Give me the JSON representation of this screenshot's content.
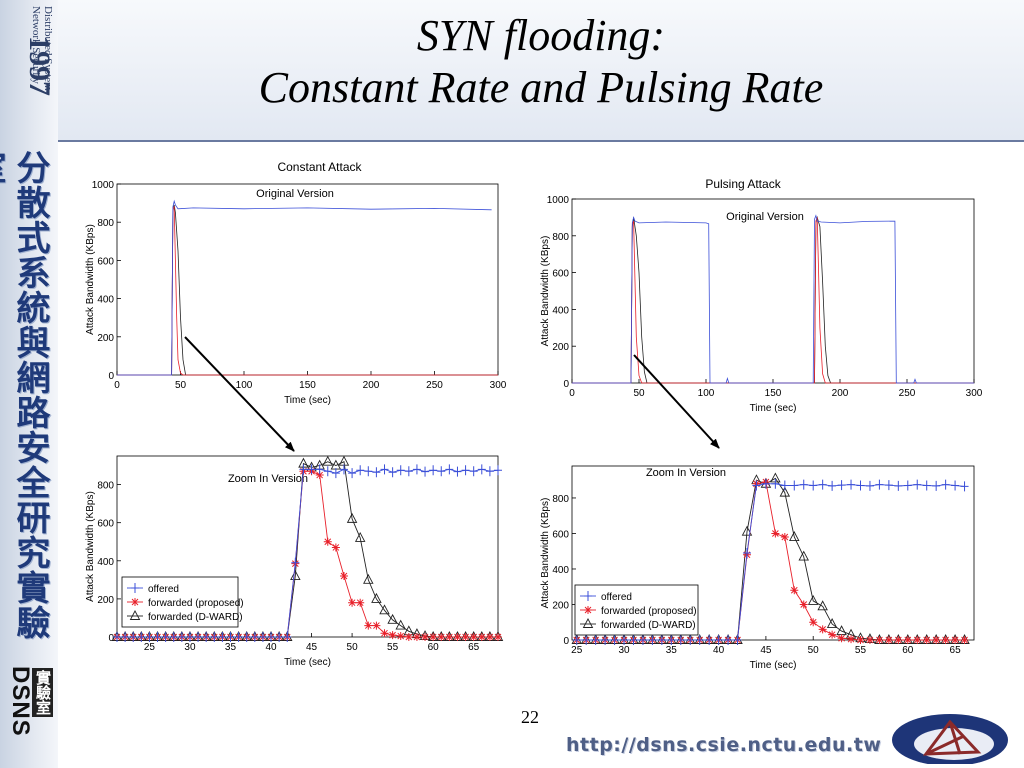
{
  "slide": {
    "title_line1": "SYN flooding:",
    "title_line2": "Constant Rate and Pulsing Rate",
    "page_number": "22",
    "url": "http://dsns.csie.nctu.edu.tw"
  },
  "branding": {
    "year": "1997",
    "lab_name": "Distributed System\nNetwork Security",
    "lab_chinese": "分散式系統與網路安全研究實驗室",
    "dsns": "DSNS",
    "lab_word": "實驗室"
  },
  "colors": {
    "offered": "#3b4fd8",
    "forwarded_proposed": "#e8202a",
    "forwarded_dward": "#222222",
    "background_strip": "#c9d3e2"
  },
  "chart_data": [
    {
      "id": "constant-original",
      "type": "line",
      "title": "Constant Attack",
      "annotation": "Original Version",
      "xlabel": "Time (sec)",
      "ylabel": "Attack Bandwidth (KBps)",
      "xlim": [
        0,
        300
      ],
      "ylim": [
        0,
        1000
      ],
      "xticks": [
        0,
        50,
        100,
        150,
        200,
        250,
        300
      ],
      "yticks": [
        0,
        200,
        400,
        600,
        800,
        1000
      ],
      "xtick_labels": [
        "0",
        "50",
        "100",
        "150",
        "200",
        "250",
        "300"
      ],
      "ytick_labels": [
        "0",
        "200",
        "400",
        "600",
        "800",
        "1000"
      ],
      "series": [
        {
          "key": "offered",
          "x": [
            0,
            43,
            44,
            45,
            46,
            48,
            60,
            100,
            150,
            200,
            250,
            295
          ],
          "y": [
            0,
            0,
            880,
            910,
            890,
            870,
            875,
            870,
            875,
            868,
            872,
            865
          ]
        },
        {
          "key": "forwarded_proposed",
          "x": [
            0,
            43,
            44,
            45,
            46,
            47,
            48,
            50,
            52,
            300
          ],
          "y": [
            0,
            0,
            870,
            880,
            600,
            300,
            80,
            10,
            0,
            0
          ]
        },
        {
          "key": "forwarded_dward",
          "x": [
            0,
            43,
            44,
            45,
            46,
            48,
            50,
            52,
            54,
            300
          ],
          "y": [
            0,
            0,
            860,
            890,
            850,
            650,
            300,
            80,
            0,
            0
          ]
        }
      ]
    },
    {
      "id": "constant-zoom",
      "type": "line",
      "annotation": "Zoom In Version",
      "xlabel": "Time (sec)",
      "ylabel": "Attack Bandwidth (KBps)",
      "xlim": [
        21,
        68
      ],
      "ylim": [
        0,
        950
      ],
      "xticks": [
        25,
        30,
        35,
        40,
        45,
        50,
        55,
        60,
        65
      ],
      "yticks": [
        0,
        200,
        400,
        600,
        800
      ],
      "xtick_labels": [
        "25",
        "30",
        "35",
        "40",
        "45",
        "50",
        "55",
        "60",
        "65"
      ],
      "ytick_labels": [
        "0",
        "200",
        "400",
        "600",
        "800"
      ],
      "legend": [
        "offered",
        "forwarded (proposed)",
        "forwarded (D-WARD)"
      ],
      "legend_position": "bottom-left",
      "series": [
        {
          "key": "offered",
          "x": [
            21,
            22,
            23,
            24,
            25,
            26,
            27,
            28,
            29,
            30,
            31,
            32,
            33,
            34,
            35,
            36,
            37,
            38,
            39,
            40,
            41,
            42,
            43,
            44,
            45,
            46,
            47,
            48,
            49,
            50,
            51,
            52,
            53,
            54,
            55,
            56,
            57,
            58,
            59,
            60,
            61,
            62,
            63,
            64,
            65,
            66,
            67,
            68
          ],
          "y": [
            0,
            0,
            0,
            0,
            0,
            0,
            0,
            0,
            0,
            0,
            0,
            0,
            0,
            0,
            0,
            0,
            0,
            0,
            0,
            0,
            0,
            0,
            390,
            880,
            880,
            880,
            870,
            860,
            880,
            860,
            875,
            870,
            865,
            880,
            865,
            875,
            870,
            880,
            868,
            875,
            870,
            880,
            868,
            875,
            870,
            880,
            870,
            875
          ]
        },
        {
          "key": "forwarded_proposed",
          "x": [
            21,
            22,
            23,
            24,
            25,
            26,
            27,
            28,
            29,
            30,
            31,
            32,
            33,
            34,
            35,
            36,
            37,
            38,
            39,
            40,
            41,
            42,
            43,
            44,
            45,
            46,
            47,
            48,
            49,
            50,
            51,
            52,
            53,
            54,
            55,
            56,
            57,
            58,
            59,
            60,
            61,
            62,
            63,
            64,
            65,
            66,
            67,
            68
          ],
          "y": [
            0,
            0,
            0,
            0,
            0,
            0,
            0,
            0,
            0,
            0,
            0,
            0,
            0,
            0,
            0,
            0,
            0,
            0,
            0,
            0,
            0,
            0,
            385,
            870,
            870,
            850,
            500,
            470,
            320,
            180,
            180,
            60,
            60,
            20,
            10,
            5,
            0,
            0,
            0,
            0,
            0,
            0,
            0,
            0,
            0,
            0,
            0,
            0
          ]
        },
        {
          "key": "forwarded_dward",
          "x": [
            21,
            22,
            23,
            24,
            25,
            26,
            27,
            28,
            29,
            30,
            31,
            32,
            33,
            34,
            35,
            36,
            37,
            38,
            39,
            40,
            41,
            42,
            43,
            44,
            45,
            46,
            47,
            48,
            49,
            50,
            51,
            52,
            53,
            54,
            55,
            56,
            57,
            58,
            59,
            60,
            61,
            62,
            63,
            64,
            65,
            66,
            67,
            68
          ],
          "y": [
            0,
            0,
            0,
            0,
            0,
            0,
            0,
            0,
            0,
            0,
            0,
            0,
            0,
            0,
            0,
            0,
            0,
            0,
            0,
            0,
            0,
            0,
            320,
            910,
            890,
            900,
            920,
            900,
            920,
            620,
            520,
            300,
            200,
            140,
            90,
            60,
            30,
            15,
            5,
            0,
            0,
            0,
            0,
            0,
            0,
            0,
            0,
            0
          ]
        }
      ]
    },
    {
      "id": "pulsing-original",
      "type": "line",
      "title": "Pulsing Attack",
      "annotation": "Original Version",
      "xlabel": "Time (sec)",
      "ylabel": "Attack Bandwidth (KBps)",
      "xlim": [
        0,
        300
      ],
      "ylim": [
        0,
        1000
      ],
      "xticks": [
        0,
        50,
        100,
        150,
        200,
        250,
        300
      ],
      "yticks": [
        0,
        200,
        400,
        600,
        800,
        1000
      ],
      "xtick_labels": [
        "0",
        "50",
        "100",
        "150",
        "200",
        "250",
        "300"
      ],
      "ytick_labels": [
        "0",
        "200",
        "400",
        "600",
        "800",
        "1000"
      ],
      "series": [
        {
          "key": "offered",
          "x": [
            0,
            44,
            45,
            46,
            47,
            50,
            70,
            100,
            102,
            103,
            115,
            116,
            117,
            118,
            180,
            181,
            182,
            183,
            186,
            200,
            220,
            241,
            242,
            243,
            255,
            256,
            257,
            258,
            300
          ],
          "y": [
            0,
            0,
            870,
            900,
            880,
            870,
            875,
            870,
            865,
            0,
            0,
            25,
            0,
            0,
            0,
            890,
            910,
            880,
            875,
            870,
            878,
            880,
            0,
            0,
            0,
            20,
            0,
            0,
            0
          ]
        },
        {
          "key": "forwarded_proposed",
          "x": [
            0,
            44,
            45,
            46,
            47,
            48,
            50,
            52,
            181,
            182,
            183,
            184,
            185,
            187,
            189,
            300
          ],
          "y": [
            0,
            0,
            860,
            880,
            550,
            250,
            40,
            0,
            0,
            880,
            900,
            600,
            300,
            50,
            0,
            0
          ]
        },
        {
          "key": "forwarded_dward",
          "x": [
            0,
            44,
            45,
            46,
            48,
            50,
            52,
            54,
            56,
            181,
            182,
            183,
            185,
            187,
            189,
            191,
            193,
            300
          ],
          "y": [
            0,
            0,
            850,
            900,
            800,
            600,
            250,
            60,
            0,
            0,
            870,
            900,
            850,
            550,
            200,
            40,
            0,
            0
          ]
        }
      ]
    },
    {
      "id": "pulsing-zoom",
      "type": "line",
      "annotation": "Zoom In Version",
      "xlabel": "Time (sec)",
      "ylabel": "Attack Bandwidth (KBps)",
      "xlim": [
        24.5,
        67
      ],
      "ylim": [
        0,
        980
      ],
      "xticks": [
        25,
        30,
        35,
        40,
        45,
        50,
        55,
        60,
        65
      ],
      "yticks": [
        0,
        200,
        400,
        600,
        800
      ],
      "xtick_labels": [
        "25",
        "30",
        "35",
        "40",
        "45",
        "50",
        "55",
        "60",
        "65"
      ],
      "ytick_labels": [
        "0",
        "200",
        "400",
        "600",
        "800"
      ],
      "legend": [
        "offered",
        "forwarded (proposed)",
        "forwarded (D-WARD)"
      ],
      "legend_position": "bottom-left",
      "series": [
        {
          "key": "offered",
          "x": [
            25,
            26,
            27,
            28,
            29,
            30,
            31,
            32,
            33,
            34,
            35,
            36,
            37,
            38,
            39,
            40,
            41,
            42,
            43,
            44,
            45,
            46,
            47,
            48,
            49,
            50,
            51,
            52,
            53,
            54,
            55,
            56,
            57,
            58,
            59,
            60,
            61,
            62,
            63,
            64,
            65,
            66
          ],
          "y": [
            0,
            0,
            0,
            0,
            0,
            0,
            0,
            0,
            0,
            0,
            0,
            0,
            0,
            0,
            0,
            0,
            0,
            0,
            490,
            870,
            880,
            880,
            870,
            870,
            875,
            870,
            875,
            868,
            872,
            875,
            870,
            868,
            875,
            872,
            868,
            870,
            875,
            870,
            868,
            875,
            870,
            865
          ]
        },
        {
          "key": "forwarded_proposed",
          "x": [
            25,
            26,
            27,
            28,
            29,
            30,
            31,
            32,
            33,
            34,
            35,
            36,
            37,
            38,
            39,
            40,
            41,
            42,
            43,
            44,
            45,
            46,
            47,
            48,
            49,
            50,
            51,
            52,
            53,
            54,
            55,
            56,
            57,
            58,
            59,
            60,
            61,
            62,
            63,
            64,
            65,
            66
          ],
          "y": [
            0,
            0,
            0,
            0,
            0,
            0,
            0,
            0,
            0,
            0,
            0,
            0,
            0,
            0,
            0,
            0,
            0,
            0,
            480,
            880,
            890,
            600,
            580,
            280,
            200,
            100,
            60,
            30,
            10,
            5,
            0,
            0,
            0,
            0,
            0,
            0,
            0,
            0,
            0,
            0,
            0,
            0
          ]
        },
        {
          "key": "forwarded_dward",
          "x": [
            25,
            26,
            27,
            28,
            29,
            30,
            31,
            32,
            33,
            34,
            35,
            36,
            37,
            38,
            39,
            40,
            41,
            42,
            43,
            44,
            45,
            46,
            47,
            48,
            49,
            50,
            51,
            52,
            53,
            54,
            55,
            56,
            57,
            58,
            59,
            60,
            61,
            62,
            63,
            64,
            65,
            66
          ],
          "y": [
            0,
            0,
            0,
            0,
            0,
            0,
            0,
            0,
            0,
            0,
            0,
            0,
            0,
            0,
            0,
            0,
            0,
            0,
            610,
            900,
            880,
            910,
            830,
            580,
            470,
            220,
            190,
            90,
            50,
            30,
            10,
            5,
            0,
            0,
            0,
            0,
            0,
            0,
            0,
            0,
            0,
            0
          ]
        }
      ]
    }
  ],
  "legend_labels": {
    "offered": "offered",
    "forwarded_proposed": "forwarded (proposed)",
    "forwarded_dward": "forwarded (D-WARD)"
  }
}
